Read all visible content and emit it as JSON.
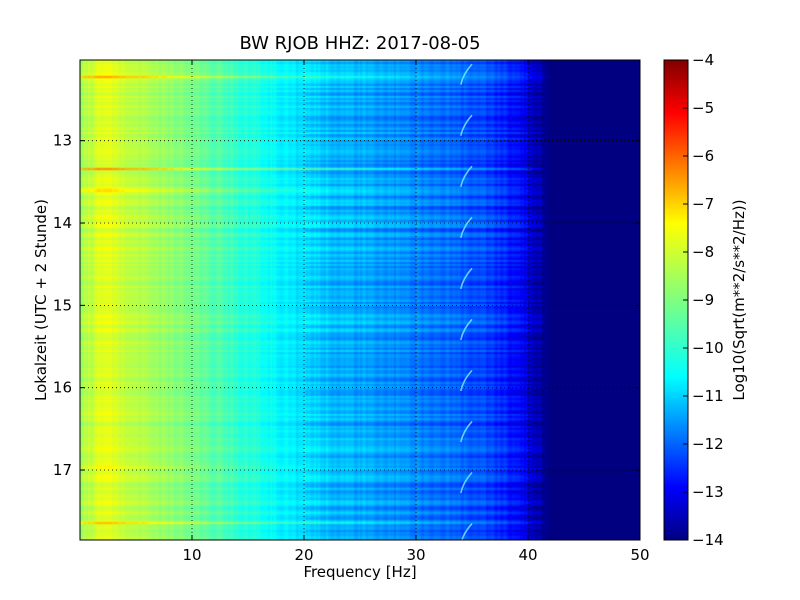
{
  "chart_data": {
    "type": "heatmap",
    "title": "BW RJOB HHZ: 2017-08-05",
    "xlabel": "Frequency [Hz]",
    "ylabel": "Lokalzeit (UTC + 2 Stunde)",
    "xlim": [
      0,
      50
    ],
    "ylim": [
      12.02,
      17.85
    ],
    "y_inverted": true,
    "x_ticks": [
      10,
      20,
      30,
      40,
      50
    ],
    "x_tick_labels": [
      "10",
      "20",
      "30",
      "40",
      "50"
    ],
    "y_ticks": [
      13,
      14,
      15,
      16,
      17
    ],
    "y_tick_labels": [
      "13",
      "14",
      "15",
      "16",
      "17"
    ],
    "grid": true,
    "colormap": "jet",
    "colorbar": {
      "label": "Log10(Sqrt(m**2/s**2/Hz))",
      "min": -14,
      "max": -4,
      "ticks": [
        -4,
        -5,
        -6,
        -7,
        -8,
        -9,
        -10,
        -11,
        -12,
        -13,
        -14
      ],
      "tick_labels": [
        "−4",
        "−5",
        "−6",
        "−7",
        "−8",
        "−9",
        "−10",
        "−11",
        "−12",
        "−13",
        "−14"
      ]
    },
    "background_profile": {
      "frequency_hz": [
        0,
        2,
        5,
        8,
        12,
        16,
        20,
        24,
        28,
        32,
        36,
        38,
        40,
        41,
        42,
        50
      ],
      "log10_value": [
        -8.6,
        -8.0,
        -8.4,
        -8.8,
        -9.4,
        -10.0,
        -10.6,
        -11.0,
        -11.3,
        -11.6,
        -12.0,
        -12.4,
        -13.0,
        -13.6,
        -14.0,
        -14.0
      ]
    },
    "bright_bands": [
      {
        "time": 12.23,
        "strength": 1.4,
        "fmax": 42
      },
      {
        "time": 13.35,
        "strength": 2.0,
        "fmax": 41
      },
      {
        "time": 13.6,
        "strength": 1.5,
        "fmax": 40
      },
      {
        "time": 16.3,
        "strength": 0.7,
        "fmax": 38
      },
      {
        "time": 16.97,
        "strength": 0.8,
        "fmax": 42
      },
      {
        "time": 17.65,
        "strength": 1.3,
        "fmax": 42
      }
    ],
    "chirp_feature": {
      "frequency_hz": [
        34,
        35
      ],
      "period_hours": 0.62
    }
  }
}
